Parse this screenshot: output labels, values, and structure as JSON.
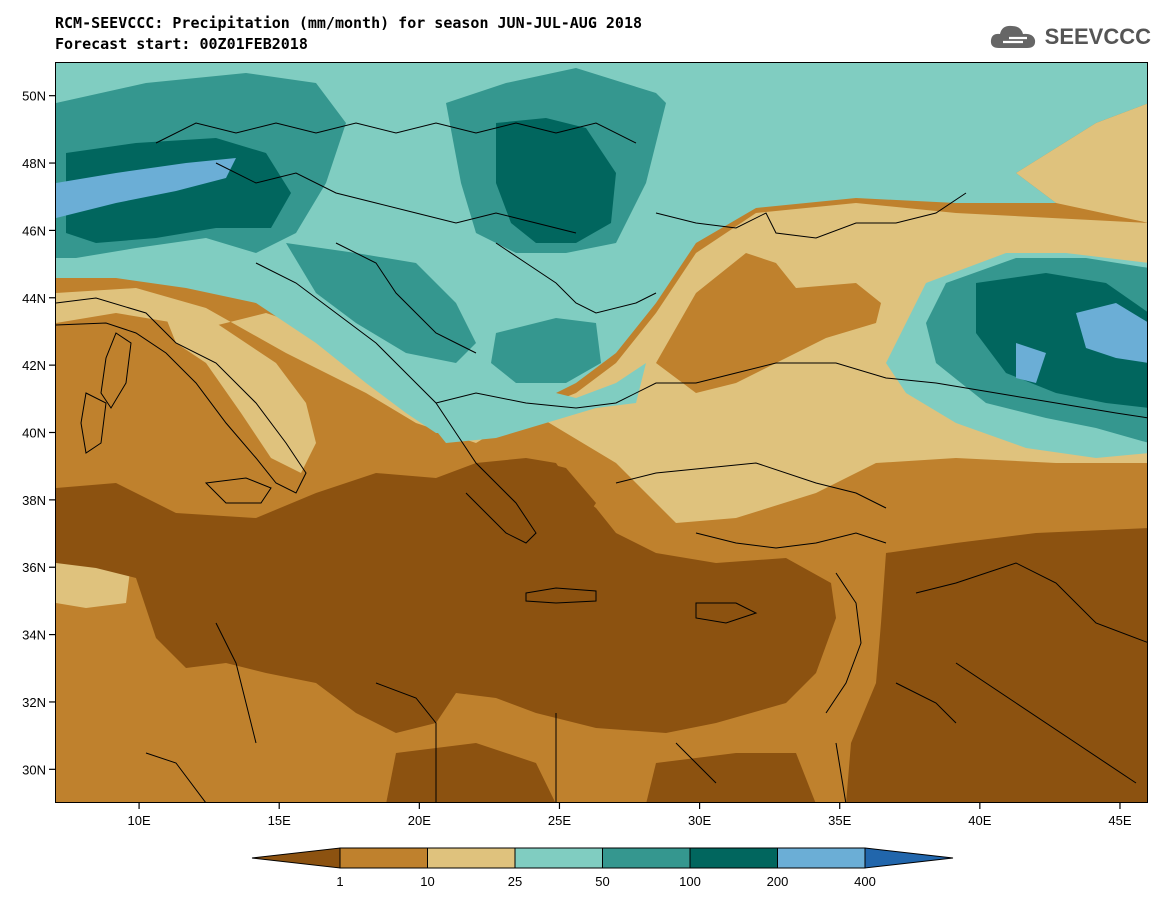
{
  "header": {
    "title_line1": "RCM-SEEVCCC: Precipitation (mm/month) for season JUN-JUL-AUG 2018",
    "title_line2": "Forecast start: 00Z01FEB2018",
    "logo_text": "SEEVCCC"
  },
  "map": {
    "projection": "lat-lon",
    "lon_range": [
      7,
      46
    ],
    "lat_range": [
      29,
      51
    ],
    "lat_ticks": [
      "50N",
      "48N",
      "46N",
      "44N",
      "42N",
      "40N",
      "38N",
      "36N",
      "34N",
      "32N",
      "30N"
    ],
    "lon_ticks": [
      "10E",
      "15E",
      "20E",
      "25E",
      "30E",
      "35E",
      "40E",
      "45E"
    ]
  },
  "legend": {
    "levels": [
      "1",
      "10",
      "25",
      "50",
      "100",
      "200",
      "400"
    ],
    "colors": [
      "#8c5210",
      "#bf812d",
      "#dfc27d",
      "#80cdc1",
      "#35978f",
      "#01665e",
      "#6baed6",
      "#2166ac"
    ]
  }
}
